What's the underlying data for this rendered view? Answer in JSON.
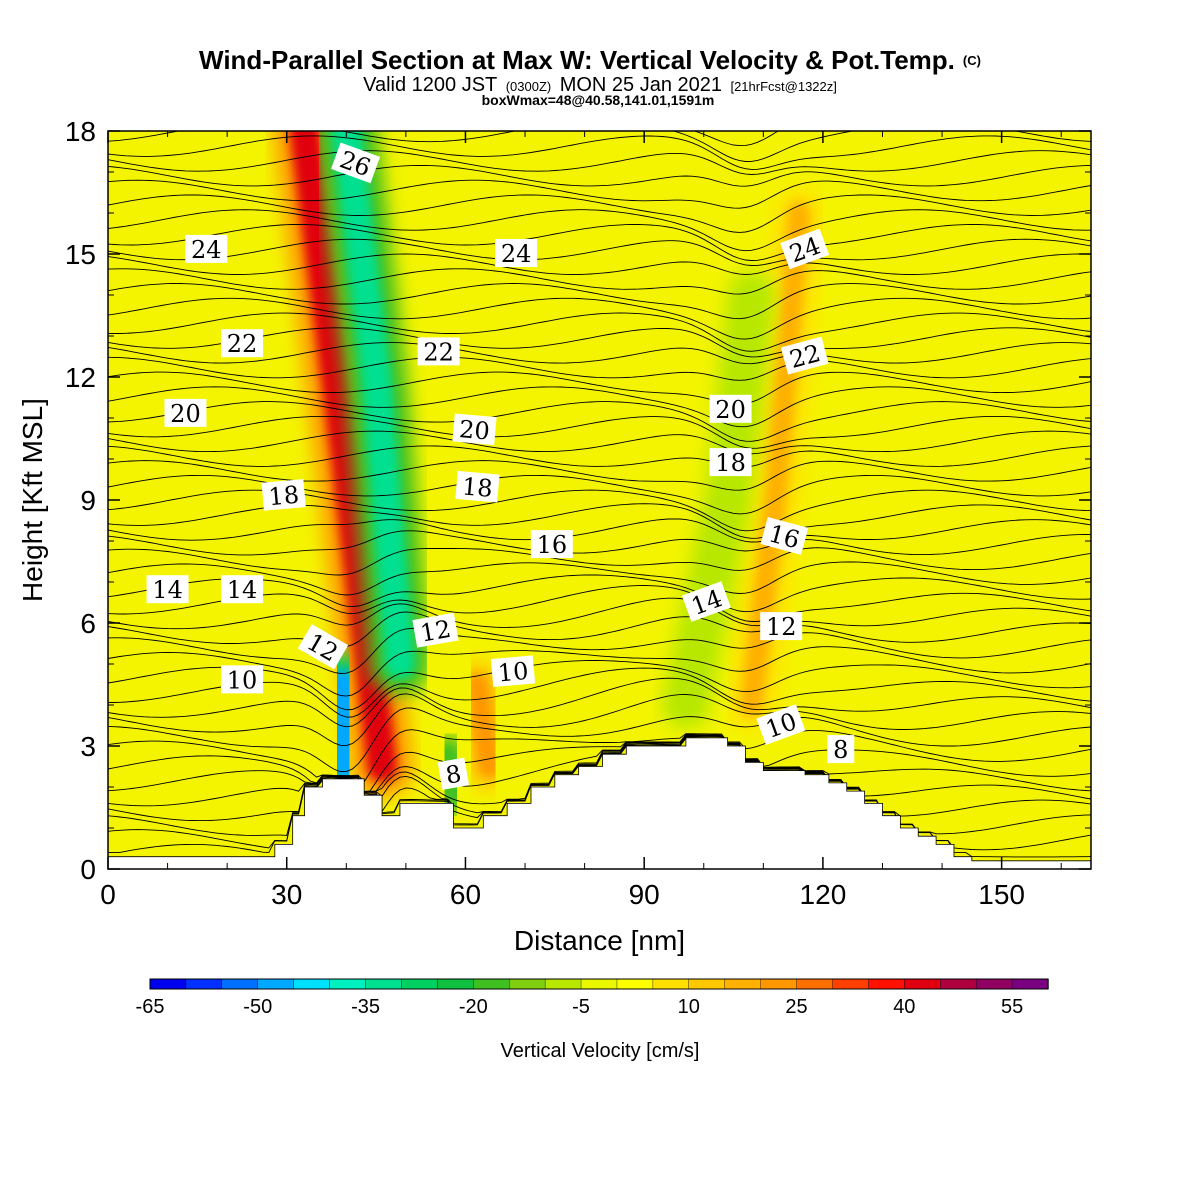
{
  "figure": {
    "title": "Wind-Parallel Section at Max W: Vertical Velocity & Pot.Temp.",
    "copyright_mark": "(C)",
    "subtitle": {
      "valid": "Valid 1200 JST",
      "utc": "(0300Z)",
      "date": "MON 25 Jan 2021",
      "forecast": "[21hrFcst@1322z]"
    },
    "box_info": "boxWmax=48@40.58,141.01,1591m"
  },
  "chart_data": {
    "type": "heatmap",
    "xlabel": "Distance [nm]",
    "ylabel": "Height [Kft MSL]",
    "xlim": [
      0,
      165
    ],
    "ylim": [
      0,
      18
    ],
    "x_ticks": [
      0,
      30,
      60,
      90,
      120,
      150
    ],
    "y_ticks": [
      0,
      3,
      6,
      9,
      12,
      15,
      18
    ],
    "grid": false,
    "field_variable": "Vertical Velocity [cm/s]",
    "colorbar": {
      "title": "Vertical Velocity [cm/s]",
      "placement": "bottom",
      "range": [
        -65,
        60
      ],
      "step": 5,
      "tick_labels": [
        -65,
        -50,
        -35,
        -20,
        -5,
        10,
        25,
        40,
        55
      ],
      "colors": [
        "#0000f0",
        "#0030ff",
        "#0070ff",
        "#00a8ff",
        "#00e0ff",
        "#00f0c0",
        "#00e090",
        "#00d060",
        "#10c040",
        "#40c020",
        "#80d010",
        "#b8e800",
        "#e8f800",
        "#ffff00",
        "#ffe000",
        "#ffc800",
        "#ffb000",
        "#ff9800",
        "#ff7000",
        "#ff4000",
        "#ff1000",
        "#e00010",
        "#b00040",
        "#900060",
        "#7a0080"
      ]
    },
    "terrain_profile": {
      "x_nm": [
        0,
        26,
        28,
        31,
        33,
        36,
        43,
        46,
        49,
        54,
        58,
        63,
        67,
        71,
        75,
        79,
        83,
        87,
        91,
        97,
        104,
        107,
        110,
        113,
        117,
        121,
        124,
        127,
        130,
        133,
        136,
        139,
        142,
        145,
        165
      ],
      "height_kft": [
        0.3,
        0.3,
        0.6,
        1.3,
        2.0,
        2.2,
        1.8,
        1.3,
        1.6,
        1.6,
        1.0,
        1.3,
        1.6,
        2.0,
        2.3,
        2.5,
        2.8,
        3.0,
        3.0,
        3.2,
        3.0,
        2.6,
        2.4,
        2.4,
        2.3,
        2.1,
        1.9,
        1.6,
        1.3,
        1.0,
        0.8,
        0.6,
        0.3,
        0.2,
        0.2
      ]
    },
    "vertical_velocity_features": [
      {
        "kind": "updraft",
        "x_nm": [
          46,
          40,
          33
        ],
        "height_kft": [
          2.5,
          10,
          18
        ],
        "peak_cm_s": 40
      },
      {
        "kind": "downdraft",
        "x_nm": [
          49,
          45,
          40
        ],
        "height_kft": [
          5,
          12,
          18
        ],
        "peak_cm_s": -35
      },
      {
        "kind": "downdraft",
        "x_nm": [
          40,
          39
        ],
        "height_kft": [
          2.5,
          4.5
        ],
        "peak_cm_s": -50
      },
      {
        "kind": "updraft",
        "x_nm": [
          64,
          62
        ],
        "height_kft": [
          2.5,
          4.5
        ],
        "peak_cm_s": 20
      },
      {
        "kind": "downdraft",
        "x_nm": [
          58,
          57
        ],
        "height_kft": [
          1.8,
          2.8
        ],
        "peak_cm_s": -20
      },
      {
        "kind": "updraft",
        "x_nm": [
          108,
          112,
          116
        ],
        "height_kft": [
          4,
          9,
          16
        ],
        "peak_cm_s": 15
      },
      {
        "kind": "downdraft",
        "x_nm": [
          97,
          104,
          108
        ],
        "height_kft": [
          4,
          9,
          14
        ],
        "peak_cm_s": -10
      }
    ],
    "potential_temperature_contours": {
      "units": "degC",
      "interval": 1,
      "labels": [
        {
          "text": "26",
          "x_nm": 41.5,
          "height_kft": 17.2,
          "angle": 20
        },
        {
          "text": "24",
          "x_nm": 16.5,
          "height_kft": 15.1,
          "angle": 0
        },
        {
          "text": "24",
          "x_nm": 68.5,
          "height_kft": 15.0,
          "angle": 0
        },
        {
          "text": "24",
          "x_nm": 117,
          "height_kft": 15.1,
          "angle": -20
        },
        {
          "text": "22",
          "x_nm": 22.5,
          "height_kft": 12.8,
          "angle": 0
        },
        {
          "text": "22",
          "x_nm": 55.5,
          "height_kft": 12.6,
          "angle": 0
        },
        {
          "text": "22",
          "x_nm": 117,
          "height_kft": 12.5,
          "angle": -15
        },
        {
          "text": "20",
          "x_nm": 13,
          "height_kft": 11.1,
          "angle": 0
        },
        {
          "text": "20",
          "x_nm": 61.5,
          "height_kft": 10.7,
          "angle": 5
        },
        {
          "text": "20",
          "x_nm": 104.5,
          "height_kft": 11.2,
          "angle": 0
        },
        {
          "text": "18",
          "x_nm": 29.5,
          "height_kft": 9.1,
          "angle": -5
        },
        {
          "text": "18",
          "x_nm": 62,
          "height_kft": 9.3,
          "angle": 5
        },
        {
          "text": "18",
          "x_nm": 104.5,
          "height_kft": 9.9,
          "angle": 0
        },
        {
          "text": "16",
          "x_nm": 74.5,
          "height_kft": 7.9,
          "angle": 0
        },
        {
          "text": "16",
          "x_nm": 113.5,
          "height_kft": 8.1,
          "angle": 15
        },
        {
          "text": "14",
          "x_nm": 10,
          "height_kft": 6.8,
          "angle": 0
        },
        {
          "text": "14",
          "x_nm": 22.5,
          "height_kft": 6.8,
          "angle": 0
        },
        {
          "text": "14",
          "x_nm": 100.5,
          "height_kft": 6.5,
          "angle": -20
        },
        {
          "text": "12",
          "x_nm": 36,
          "height_kft": 5.4,
          "angle": 30
        },
        {
          "text": "12",
          "x_nm": 55,
          "height_kft": 5.8,
          "angle": -10
        },
        {
          "text": "12",
          "x_nm": 113,
          "height_kft": 5.9,
          "angle": 0
        },
        {
          "text": "10",
          "x_nm": 22.5,
          "height_kft": 4.6,
          "angle": 0
        },
        {
          "text": "10",
          "x_nm": 68,
          "height_kft": 4.8,
          "angle": -5
        },
        {
          "text": "10",
          "x_nm": 113,
          "height_kft": 3.5,
          "angle": -20
        },
        {
          "text": "8",
          "x_nm": 58,
          "height_kft": 2.3,
          "angle": -10
        },
        {
          "text": "8",
          "x_nm": 123,
          "height_kft": 2.9,
          "angle": 0
        }
      ]
    }
  }
}
